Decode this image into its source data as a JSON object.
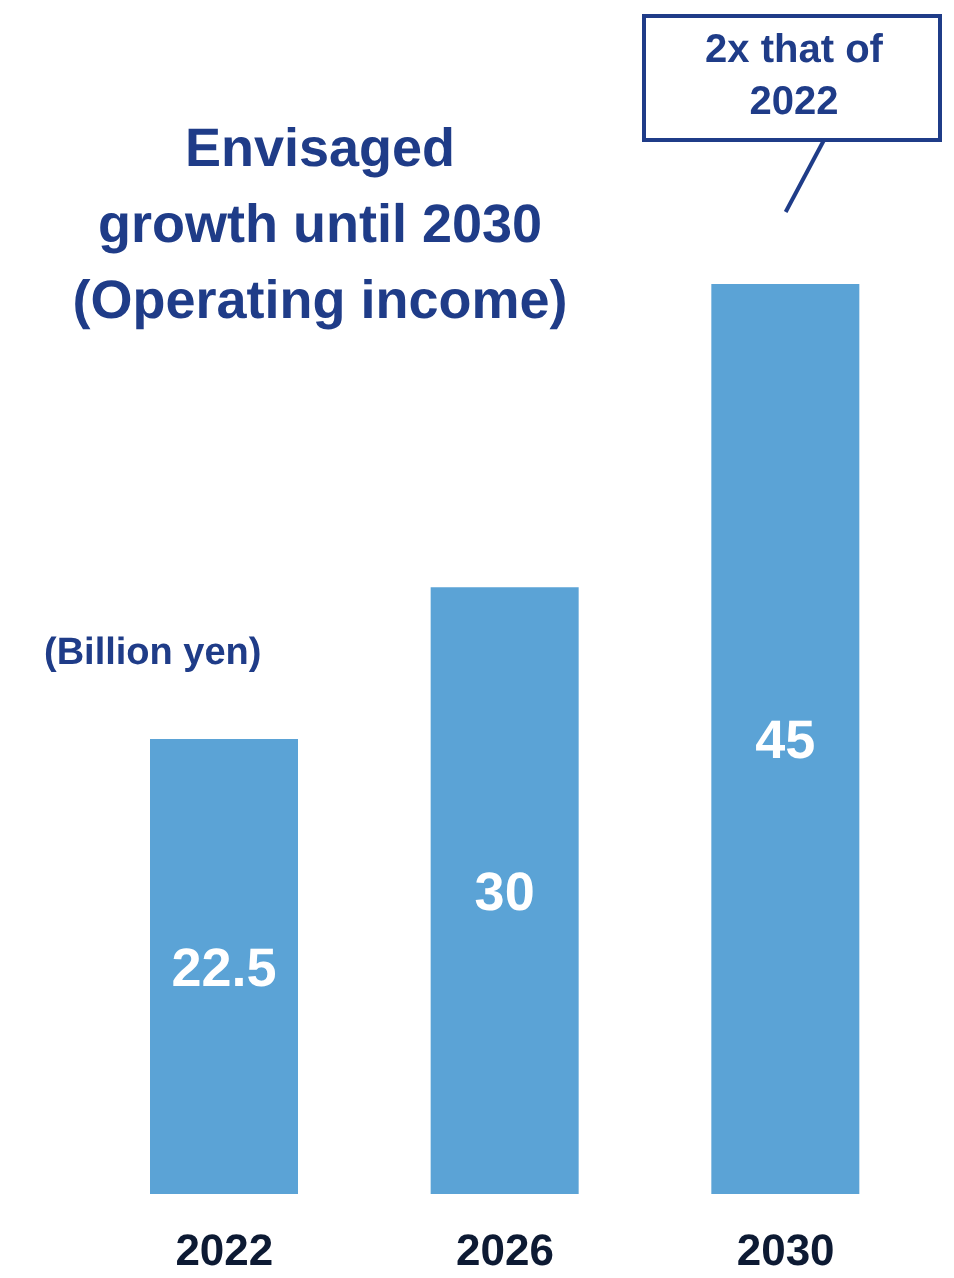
{
  "chart_data": {
    "type": "bar",
    "title": "Envisaged growth until 2030 (Operating income)",
    "subtitle": "(Billion yen)",
    "categories": [
      "2022",
      "2026",
      "2030"
    ],
    "values": [
      22.5,
      30,
      45
    ],
    "color": "#5ba3d6",
    "data_labels": true,
    "annotations": [
      "2x that of 2022"
    ]
  }
}
